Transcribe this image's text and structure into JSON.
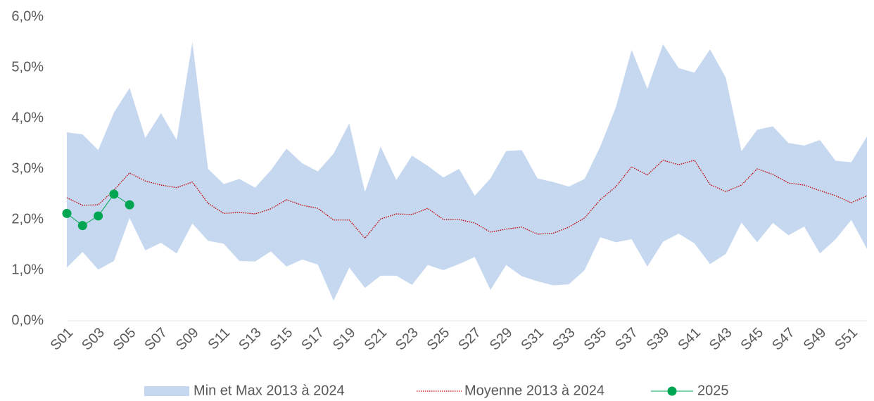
{
  "chart_data": {
    "type": "line",
    "categories": [
      "S01",
      null,
      "S03",
      null,
      "S05",
      null,
      "S07",
      null,
      "S09",
      null,
      "S11",
      null,
      "S13",
      null,
      "S15",
      null,
      "S17",
      null,
      "S19",
      null,
      "S21",
      null,
      "S23",
      null,
      "S25",
      null,
      "S27",
      null,
      "S29",
      null,
      "S31",
      null,
      "S33",
      null,
      "S35",
      null,
      "S37",
      null,
      "S39",
      null,
      "S41",
      null,
      "S43",
      null,
      "S45",
      null,
      "S47",
      null,
      "S49",
      null,
      "S51",
      null
    ],
    "ylim": [
      0,
      6
    ],
    "yticks": [
      {
        "value": 0,
        "label": "0,0%"
      },
      {
        "value": 1,
        "label": "1,0%"
      },
      {
        "value": 2,
        "label": "2,0%"
      },
      {
        "value": 3,
        "label": "3,0%"
      },
      {
        "value": 4,
        "label": "4,0%"
      },
      {
        "value": 5,
        "label": "5,0%"
      },
      {
        "value": 6,
        "label": "6,0%"
      }
    ],
    "series": [
      {
        "name": "Min et Max 2013 à 2024",
        "type": "band",
        "color": "#c6d8f0",
        "max": [
          3.72,
          3.68,
          3.37,
          4.11,
          4.6,
          3.61,
          4.1,
          3.57,
          5.5,
          3.0,
          2.7,
          2.8,
          2.63,
          2.97,
          3.4,
          3.11,
          2.95,
          3.3,
          3.9,
          2.54,
          3.44,
          2.78,
          3.26,
          3.06,
          2.83,
          3.0,
          2.47,
          2.81,
          3.35,
          3.37,
          2.81,
          2.74,
          2.65,
          2.8,
          3.44,
          4.22,
          5.35,
          4.58,
          5.46,
          4.99,
          4.9,
          5.36,
          4.8,
          3.35,
          3.77,
          3.84,
          3.51,
          3.46,
          3.57,
          3.16,
          3.13,
          3.64
        ],
        "min": [
          1.05,
          1.36,
          1.01,
          1.18,
          2.03,
          1.39,
          1.54,
          1.33,
          1.92,
          1.58,
          1.52,
          1.18,
          1.17,
          1.37,
          1.07,
          1.21,
          1.11,
          0.4,
          1.05,
          0.65,
          0.89,
          0.89,
          0.71,
          1.1,
          1.0,
          1.12,
          1.26,
          0.61,
          1.1,
          0.88,
          0.78,
          0.7,
          0.72,
          1.0,
          1.65,
          1.55,
          1.61,
          1.07,
          1.56,
          1.72,
          1.53,
          1.12,
          1.32,
          1.94,
          1.55,
          1.93,
          1.69,
          1.86,
          1.33,
          1.61,
          1.99,
          1.42
        ]
      },
      {
        "name": "Moyenne 2013 à 2024",
        "type": "dotted",
        "color": "#c00000",
        "values": [
          2.43,
          2.28,
          2.29,
          2.58,
          2.92,
          2.76,
          2.68,
          2.63,
          2.74,
          2.32,
          2.12,
          2.14,
          2.11,
          2.21,
          2.39,
          2.28,
          2.22,
          1.99,
          1.99,
          1.63,
          2.01,
          2.11,
          2.1,
          2.22,
          2.0,
          2.0,
          1.93,
          1.75,
          1.81,
          1.85,
          1.71,
          1.73,
          1.85,
          2.03,
          2.39,
          2.65,
          3.04,
          2.88,
          3.17,
          3.08,
          3.17,
          2.69,
          2.55,
          2.68,
          3.0,
          2.89,
          2.72,
          2.68,
          2.57,
          2.47,
          2.33,
          2.47
        ]
      },
      {
        "name": "2025",
        "type": "markers",
        "color": "#00a651",
        "values": [
          2.12,
          1.88,
          2.07,
          2.5,
          2.29,
          null,
          null,
          null,
          null,
          null,
          null,
          null,
          null,
          null,
          null,
          null,
          null,
          null,
          null,
          null,
          null,
          null,
          null,
          null,
          null,
          null,
          null,
          null,
          null,
          null,
          null,
          null,
          null,
          null,
          null,
          null,
          null,
          null,
          null,
          null,
          null,
          null,
          null,
          null,
          null,
          null,
          null,
          null,
          null,
          null,
          null,
          null
        ]
      }
    ]
  }
}
